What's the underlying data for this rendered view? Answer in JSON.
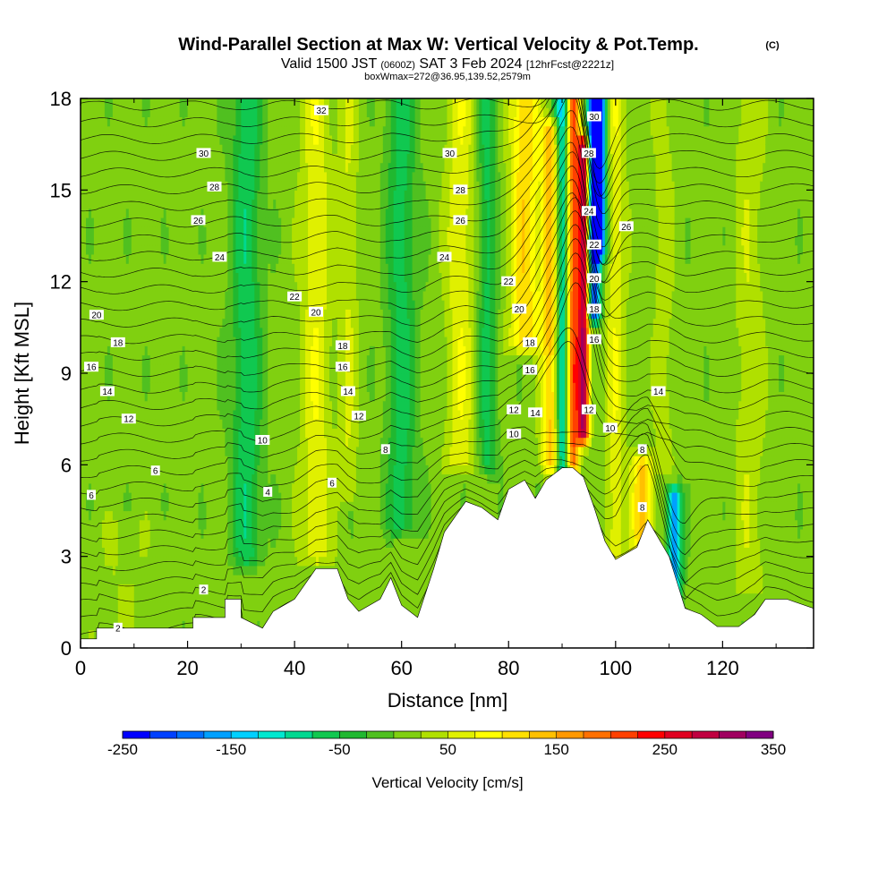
{
  "title": {
    "main": "Wind-Parallel Section at Max W: Vertical Velocity & Pot.Temp.",
    "copyright": "(C)",
    "valid_prefix": "Valid 1500 JST",
    "valid_utc": "(0600Z)",
    "valid_date": "SAT 3 Feb 2024",
    "forecast": "[12hrFcst@2221z]",
    "boxinfo": "boxWmax=272@36.95,139.52,2579m"
  },
  "chart_data": {
    "type": "heatmap",
    "xlabel": "Distance [nm]",
    "ylabel": "Height [Kft MSL]",
    "xlim": [
      0,
      137
    ],
    "ylim": [
      0,
      18
    ],
    "x_ticks": [
      0,
      20,
      40,
      60,
      80,
      100,
      120
    ],
    "y_ticks": [
      0,
      3,
      6,
      9,
      12,
      15,
      18
    ],
    "colorbar": {
      "label": "Vertical Velocity [cm/s]",
      "range": [
        -250,
        350
      ],
      "tick_labels": [
        -250,
        -150,
        -50,
        50,
        150,
        250,
        350
      ],
      "colors": [
        "#0000ff",
        "#0040ff",
        "#0070ff",
        "#00a0ff",
        "#00d0ff",
        "#00e8d0",
        "#00d890",
        "#10c850",
        "#20b830",
        "#50c020",
        "#80d010",
        "#b0e000",
        "#e0f000",
        "#ffff00",
        "#ffe000",
        "#ffc000",
        "#ff9800",
        "#ff7000",
        "#ff4000",
        "#ff0000",
        "#e00020",
        "#c00040",
        "#a00060",
        "#800080"
      ]
    },
    "terrain": [
      [
        0,
        0.3
      ],
      [
        3,
        0.3
      ],
      [
        3,
        0.65
      ],
      [
        21,
        0.65
      ],
      [
        21,
        1
      ],
      [
        27,
        1
      ],
      [
        27,
        1.6
      ],
      [
        30,
        1.6
      ],
      [
        30,
        1
      ],
      [
        34,
        0.65
      ],
      [
        36,
        1.2
      ],
      [
        40,
        1.6
      ],
      [
        44,
        2.6
      ],
      [
        48,
        2.6
      ],
      [
        50,
        1.6
      ],
      [
        52,
        1.2
      ],
      [
        56,
        1.6
      ],
      [
        58,
        2.3
      ],
      [
        60,
        1.4
      ],
      [
        63,
        1.0
      ],
      [
        66,
        2.6
      ],
      [
        68,
        3.8
      ],
      [
        72,
        4.8
      ],
      [
        75,
        4.6
      ],
      [
        78,
        4.2
      ],
      [
        80,
        5.2
      ],
      [
        83,
        5.5
      ],
      [
        85,
        4.9
      ],
      [
        87,
        5.5
      ],
      [
        90,
        5.9
      ],
      [
        92,
        5.9
      ],
      [
        94,
        5.6
      ],
      [
        96,
        4.6
      ],
      [
        98,
        3.5
      ],
      [
        100,
        2.9
      ],
      [
        102,
        3.1
      ],
      [
        104,
        3.3
      ],
      [
        106,
        4.2
      ],
      [
        110,
        3.0
      ],
      [
        113,
        1.3
      ],
      [
        116,
        1.1
      ],
      [
        119,
        0.7
      ],
      [
        123,
        0.7
      ],
      [
        126,
        1.1
      ],
      [
        128,
        1.6
      ],
      [
        132,
        1.6
      ],
      [
        137,
        1.3
      ]
    ],
    "velocity_bands": [
      {
        "x": 31,
        "half_width": 3,
        "top": 18,
        "bottom": 3,
        "value": -80
      },
      {
        "x": 44,
        "half_width": 3,
        "top": 18,
        "bottom": 3,
        "value": 60
      },
      {
        "x": 50,
        "half_width": 2,
        "top": 18,
        "bottom": 5,
        "value": 40
      },
      {
        "x": 60,
        "half_width": 3,
        "top": 18,
        "bottom": 4,
        "value": -70
      },
      {
        "x": 71,
        "half_width": 3,
        "top": 18,
        "bottom": 6,
        "value": 60
      },
      {
        "x": 76,
        "half_width": 2,
        "top": 18,
        "bottom": 6,
        "value": -70
      },
      {
        "x": 83,
        "half_width": 3,
        "top": 18,
        "bottom": 10,
        "value": 110
      },
      {
        "x": 88,
        "half_width": 2,
        "top": 17,
        "bottom": 6,
        "value": 130
      },
      {
        "x": 90,
        "half_width": 1.5,
        "top": 18,
        "bottom": 4,
        "value": -150
      },
      {
        "x": 92,
        "half_width": 1.3,
        "top": 18,
        "bottom": 6,
        "value": 200
      },
      {
        "x": 94,
        "half_width": 1.2,
        "top": 16.5,
        "bottom": 7,
        "value": 280
      },
      {
        "x": 96,
        "half_width": 1.3,
        "top": 18,
        "bottom": 11,
        "value": -240
      },
      {
        "x": 97,
        "half_width": 1.5,
        "top": 18,
        "bottom": 13,
        "value": -200
      },
      {
        "x": 100,
        "half_width": 2,
        "top": 18,
        "bottom": 3,
        "value": 60
      },
      {
        "x": 105,
        "half_width": 2,
        "top": 6,
        "bottom": 2,
        "value": 130
      },
      {
        "x": 111,
        "half_width": 1.5,
        "top": 5,
        "bottom": 1.5,
        "value": -180
      },
      {
        "x": 109,
        "half_width": 2,
        "top": 18,
        "bottom": 6,
        "value": 30
      },
      {
        "x": 125,
        "half_width": 3,
        "top": 18,
        "bottom": 2,
        "value": 35
      },
      {
        "x": 8,
        "half_width": 6,
        "top": 4,
        "bottom": 0,
        "value": 15
      }
    ],
    "contour_levels": [
      2,
      4,
      6,
      8,
      10,
      12,
      14,
      16,
      18,
      20,
      22,
      24,
      26,
      28,
      30,
      32
    ],
    "contour_labels": [
      {
        "text": "32",
        "x": 45,
        "y": 17.6
      },
      {
        "text": "30",
        "x": 23,
        "y": 16.2
      },
      {
        "text": "28",
        "x": 25,
        "y": 15.1
      },
      {
        "text": "26",
        "x": 22,
        "y": 14.0
      },
      {
        "text": "24",
        "x": 26,
        "y": 12.8
      },
      {
        "text": "22",
        "x": 40,
        "y": 11.5
      },
      {
        "text": "20",
        "x": 3,
        "y": 10.9
      },
      {
        "text": "20",
        "x": 44,
        "y": 11.0
      },
      {
        "text": "18",
        "x": 7,
        "y": 10.0
      },
      {
        "text": "18",
        "x": 49,
        "y": 9.9
      },
      {
        "text": "16",
        "x": 2,
        "y": 9.2
      },
      {
        "text": "16",
        "x": 49,
        "y": 9.2
      },
      {
        "text": "14",
        "x": 5,
        "y": 8.4
      },
      {
        "text": "14",
        "x": 50,
        "y": 8.4
      },
      {
        "text": "12",
        "x": 9,
        "y": 7.5
      },
      {
        "text": "12",
        "x": 52,
        "y": 7.6
      },
      {
        "text": "10",
        "x": 34,
        "y": 6.8
      },
      {
        "text": "8",
        "x": 57,
        "y": 6.5
      },
      {
        "text": "6",
        "x": 14,
        "y": 5.8
      },
      {
        "text": "6",
        "x": 47,
        "y": 5.4
      },
      {
        "text": "6",
        "x": 2,
        "y": 5.0
      },
      {
        "text": "4",
        "x": 35,
        "y": 5.1
      },
      {
        "text": "2",
        "x": 23,
        "y": 1.9
      },
      {
        "text": "2",
        "x": 7,
        "y": 0.65
      },
      {
        "text": "30",
        "x": 69,
        "y": 16.2
      },
      {
        "text": "28",
        "x": 71,
        "y": 15.0
      },
      {
        "text": "26",
        "x": 71,
        "y": 14.0
      },
      {
        "text": "24",
        "x": 68,
        "y": 12.8
      },
      {
        "text": "22",
        "x": 80,
        "y": 12.0
      },
      {
        "text": "20",
        "x": 82,
        "y": 11.1
      },
      {
        "text": "18",
        "x": 84,
        "y": 10.0
      },
      {
        "text": "16",
        "x": 84,
        "y": 9.1
      },
      {
        "text": "14",
        "x": 85,
        "y": 7.7
      },
      {
        "text": "12",
        "x": 81,
        "y": 7.8
      },
      {
        "text": "10",
        "x": 81,
        "y": 7.0
      },
      {
        "text": "30",
        "x": 96,
        "y": 17.4
      },
      {
        "text": "28",
        "x": 95,
        "y": 16.2
      },
      {
        "text": "24",
        "x": 95,
        "y": 14.3
      },
      {
        "text": "26",
        "x": 102,
        "y": 13.8
      },
      {
        "text": "22",
        "x": 96,
        "y": 13.2
      },
      {
        "text": "20",
        "x": 96,
        "y": 12.1
      },
      {
        "text": "18",
        "x": 96,
        "y": 11.1
      },
      {
        "text": "16",
        "x": 96,
        "y": 10.1
      },
      {
        "text": "12",
        "x": 95,
        "y": 7.8
      },
      {
        "text": "10",
        "x": 99,
        "y": 7.2
      },
      {
        "text": "8",
        "x": 105,
        "y": 6.5
      },
      {
        "text": "8",
        "x": 105,
        "y": 4.6
      },
      {
        "text": "14",
        "x": 108,
        "y": 8.4
      }
    ]
  }
}
